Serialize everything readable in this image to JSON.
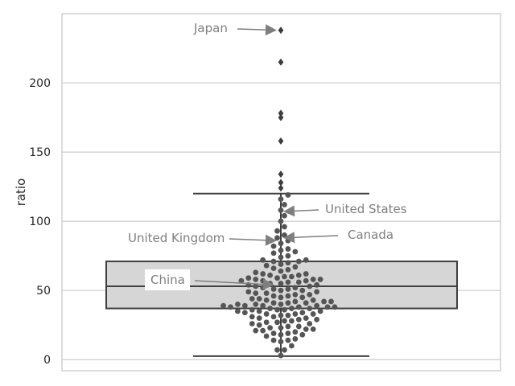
{
  "chart_data": {
    "type": "box",
    "xlabel": "",
    "ylabel": "ratio",
    "ylim": [
      -8,
      250
    ],
    "yticks": [
      0,
      50,
      100,
      150,
      200
    ],
    "grid": "horizontal",
    "box": {
      "whisker_low": 2.5,
      "q1": 37,
      "median": 53,
      "q3": 71,
      "whisker_high": 120
    },
    "outliers": [
      124,
      128,
      134,
      158,
      175,
      178,
      215,
      238
    ],
    "swarm_values": [
      3,
      7,
      7,
      10,
      13,
      14,
      14,
      15,
      17,
      18,
      18,
      19,
      19,
      20,
      21,
      21,
      22,
      22,
      23,
      23,
      24,
      24,
      25,
      26,
      26,
      27,
      27,
      28,
      28,
      29,
      29,
      30,
      30,
      31,
      31,
      32,
      32,
      33,
      33,
      33,
      34,
      34,
      35,
      35,
      35,
      36,
      36,
      36,
      37,
      37,
      37,
      38,
      38,
      38,
      38,
      39,
      39,
      39,
      39,
      40,
      40,
      40,
      41,
      41,
      41,
      42,
      42,
      42,
      43,
      43,
      44,
      44,
      45,
      45,
      46,
      46,
      47,
      47,
      48,
      48,
      49,
      49,
      50,
      50,
      51,
      51,
      52,
      52,
      53,
      53,
      54,
      54,
      55,
      55,
      56,
      56,
      57,
      57,
      57,
      58,
      58,
      58,
      59,
      59,
      60,
      60,
      61,
      61,
      62,
      62,
      63,
      64,
      65,
      66,
      67,
      68,
      69,
      70,
      71,
      71,
      72,
      72,
      74,
      75,
      77,
      78,
      79,
      80,
      82,
      84,
      86,
      88,
      90,
      93,
      96,
      100,
      104,
      108,
      112,
      116,
      119
    ],
    "annotations": [
      {
        "label": "Japan",
        "value": 238
      },
      {
        "label": "United States",
        "value": 107
      },
      {
        "label": "United Kingdom",
        "value": 86
      },
      {
        "label": "Canada",
        "value": 88
      },
      {
        "label": "China",
        "value": 54
      }
    ],
    "colors": {
      "box_fill": "#d6d6d6",
      "box_edge": "#3f3f3f",
      "swarm": "#555555",
      "annotation": "#7f7f7f",
      "grid": "#cccccc",
      "frame": "#cccccc"
    }
  }
}
